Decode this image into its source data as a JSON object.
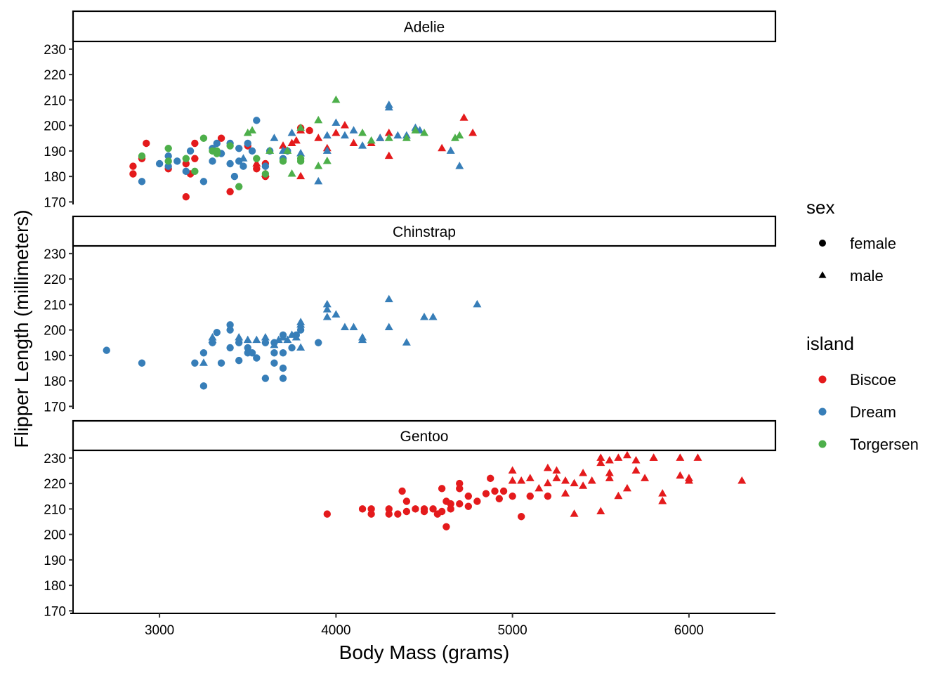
{
  "chart_data": {
    "type": "scatter",
    "xlabel": "Body Mass (grams)",
    "ylabel": "Flipper Length (millimeters)",
    "xlim": [
      2510,
      6490
    ],
    "ylim": [
      169,
      233
    ],
    "x_ticks": [
      3000,
      4000,
      5000,
      6000
    ],
    "y_ticks": [
      170,
      180,
      190,
      200,
      210,
      220,
      230
    ],
    "grid": false,
    "facets": [
      "Adelie",
      "Chinstrap",
      "Gentoo"
    ],
    "legends": {
      "sex": {
        "title": "sex",
        "entries": [
          {
            "label": "female",
            "shape": "circle"
          },
          {
            "label": "male",
            "shape": "triangle"
          }
        ]
      },
      "island": {
        "title": "island",
        "entries": [
          {
            "label": "Biscoe",
            "color": "#E41A1C"
          },
          {
            "label": "Dream",
            "color": "#377EB8"
          },
          {
            "label": "Torgersen",
            "color": "#4DAF4A"
          }
        ]
      }
    },
    "legend_position": "right",
    "series": [
      {
        "facet": "Adelie",
        "island": "Biscoe",
        "sex": "female",
        "x": [
          2850,
          2850,
          2900,
          2925,
          3050,
          3150,
          3150,
          3175,
          3200,
          3200,
          3350,
          3400,
          3500,
          3550,
          3600,
          3600,
          3800,
          3850
        ],
        "y": [
          184,
          181,
          187,
          193,
          183,
          185,
          172,
          181,
          187,
          193,
          195,
          174,
          192,
          183,
          185,
          180,
          199,
          198
        ]
      },
      {
        "facet": "Adelie",
        "island": "Biscoe",
        "sex": "male",
        "x": [
          3550,
          3600,
          3700,
          3750,
          3775,
          3800,
          3800,
          3900,
          3950,
          4000,
          4050,
          4100,
          4200,
          4250,
          4300,
          4300,
          4600,
          4725,
          4775
        ],
        "y": [
          185,
          181,
          192,
          193,
          194,
          198,
          180,
          195,
          191,
          197,
          200,
          193,
          193,
          195,
          197,
          188,
          191,
          203,
          197
        ]
      },
      {
        "facet": "Adelie",
        "island": "Dream",
        "sex": "female",
        "x": [
          2900,
          3000,
          3050,
          3050,
          3100,
          3150,
          3175,
          3250,
          3300,
          3300,
          3325,
          3350,
          3400,
          3400,
          3425,
          3450,
          3450,
          3475,
          3500,
          3525,
          3550,
          3600,
          3625,
          3700,
          3725
        ],
        "y": [
          178,
          185,
          188,
          184,
          186,
          182,
          190,
          178,
          191,
          186,
          193,
          189,
          193,
          185,
          180,
          191,
          186,
          184,
          193,
          190,
          202,
          184,
          190,
          187,
          190
        ]
      },
      {
        "facet": "Adelie",
        "island": "Dream",
        "sex": "male",
        "x": [
          3475,
          3650,
          3700,
          3750,
          3800,
          3900,
          3950,
          3950,
          4000,
          4050,
          4100,
          4150,
          4250,
          4300,
          4300,
          4350,
          4400,
          4450,
          4475,
          4650,
          4700
        ],
        "y": [
          187,
          195,
          190,
          197,
          189,
          178,
          196,
          190,
          201,
          196,
          198,
          192,
          195,
          208,
          207,
          196,
          196,
          199,
          198,
          190,
          184
        ]
      },
      {
        "facet": "Adelie",
        "island": "Torgersen",
        "sex": "female",
        "x": [
          2900,
          3050,
          3050,
          3150,
          3200,
          3250,
          3300,
          3325,
          3325,
          3400,
          3450,
          3550,
          3600,
          3700,
          3800,
          3800
        ],
        "y": [
          188,
          191,
          186,
          187,
          182,
          195,
          190,
          189,
          190,
          192,
          176,
          187,
          181,
          186,
          186,
          187
        ]
      },
      {
        "facet": "Adelie",
        "island": "Torgersen",
        "sex": "male",
        "x": [
          3500,
          3525,
          3625,
          3725,
          3750,
          3800,
          3900,
          3900,
          3950,
          4000,
          4150,
          4200,
          4300,
          4400,
          4450,
          4500,
          4675,
          4700
        ],
        "y": [
          197,
          198,
          190,
          190,
          181,
          199,
          184,
          202,
          186,
          210,
          197,
          194,
          195,
          195,
          198,
          197,
          195,
          196
        ]
      },
      {
        "facet": "Chinstrap",
        "island": "Dream",
        "sex": "female",
        "x": [
          2700,
          2900,
          3200,
          3250,
          3250,
          3300,
          3325,
          3350,
          3400,
          3400,
          3400,
          3450,
          3450,
          3500,
          3500,
          3525,
          3550,
          3600,
          3600,
          3650,
          3650,
          3650,
          3700,
          3700,
          3700,
          3700,
          3750,
          3775,
          3800,
          3900
        ],
        "y": [
          192,
          187,
          187,
          178,
          191,
          195,
          199,
          187,
          202,
          200,
          193,
          188,
          195,
          191,
          193,
          191,
          189,
          181,
          195,
          187,
          195,
          191,
          198,
          181,
          185,
          191,
          193,
          198,
          200,
          195
        ]
      },
      {
        "facet": "Chinstrap",
        "island": "Dream",
        "sex": "male",
        "x": [
          3250,
          3300,
          3300,
          3450,
          3500,
          3550,
          3600,
          3650,
          3675,
          3700,
          3725,
          3750,
          3775,
          3800,
          3800,
          3800,
          3950,
          3950,
          3950,
          4000,
          4050,
          4100,
          4150,
          4150,
          4300,
          4300,
          4400,
          4500,
          4550,
          4800
        ],
        "y": [
          187,
          196,
          197,
          197,
          196,
          196,
          197,
          194,
          196,
          197,
          196,
          198,
          197,
          193,
          202,
          203,
          210,
          208,
          205,
          206,
          201,
          201,
          197,
          196,
          212,
          201,
          195,
          205,
          205,
          210
        ]
      },
      {
        "facet": "Gentoo",
        "island": "Biscoe",
        "sex": "female",
        "x": [
          3950,
          4150,
          4200,
          4200,
          4300,
          4300,
          4350,
          4375,
          4400,
          4400,
          4450,
          4500,
          4500,
          4550,
          4575,
          4600,
          4600,
          4625,
          4625,
          4650,
          4650,
          4700,
          4700,
          4700,
          4750,
          4750,
          4800,
          4850,
          4875,
          4900,
          4925,
          4950,
          5000,
          5050,
          5100,
          5200
        ],
        "y": [
          208,
          210,
          210,
          208,
          208,
          210,
          208,
          217,
          213,
          209,
          210,
          210,
          209,
          210,
          208,
          218,
          209,
          213,
          203,
          212,
          210,
          220,
          218,
          212,
          215,
          211,
          213,
          216,
          222,
          217,
          214,
          217,
          215,
          207,
          215,
          215
        ]
      },
      {
        "facet": "Gentoo",
        "island": "Biscoe",
        "sex": "male",
        "x": [
          5000,
          5000,
          5050,
          5100,
          5150,
          5200,
          5200,
          5250,
          5250,
          5300,
          5300,
          5350,
          5350,
          5400,
          5400,
          5450,
          5500,
          5500,
          5500,
          5550,
          5550,
          5550,
          5600,
          5600,
          5650,
          5650,
          5700,
          5700,
          5750,
          5800,
          5800,
          5850,
          5850,
          5950,
          5950,
          6000,
          6000,
          6050,
          6300
        ],
        "y": [
          225,
          221,
          221,
          222,
          218,
          220,
          226,
          225,
          222,
          221,
          216,
          208,
          220,
          224,
          219,
          221,
          230,
          228,
          209,
          229,
          224,
          222,
          230,
          215,
          231,
          218,
          229,
          225,
          222,
          230,
          230,
          213,
          216,
          230,
          223,
          222,
          221,
          230,
          221
        ]
      }
    ]
  }
}
